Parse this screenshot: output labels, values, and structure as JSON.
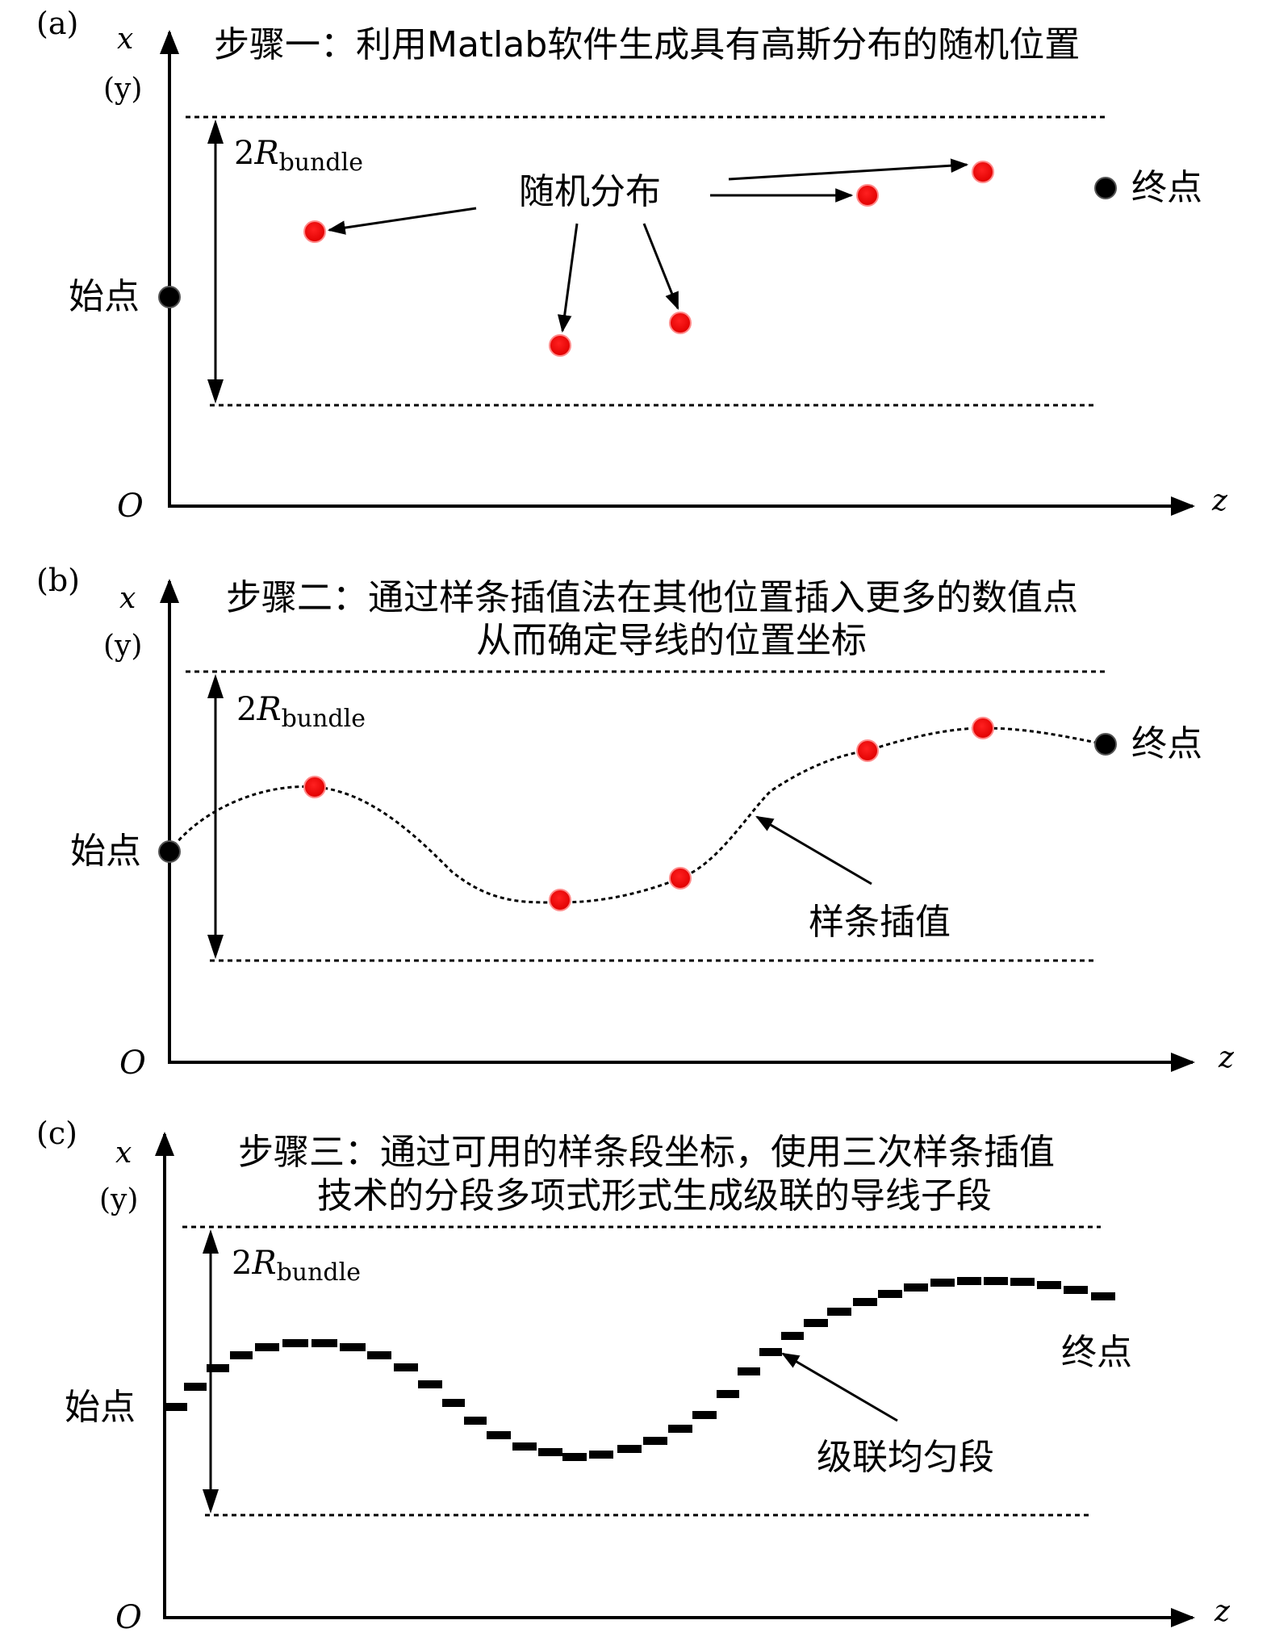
{
  "panels": [
    {
      "id": "a",
      "panel_label": "(a)",
      "title_lines": [
        "步骤一：利用Matlab软件生成具有高斯分布的随机位置"
      ],
      "axis_x_label": "x",
      "axis_y_label": "(y)",
      "origin_label": "O",
      "axis_z_label": "z",
      "bundle_coef": "2",
      "bundle_symbol": "R",
      "bundle_subscript": "bundle",
      "start_label": "始点",
      "end_label": "终点",
      "annotation": "随机分布"
    },
    {
      "id": "b",
      "panel_label": "(b)",
      "title_lines": [
        "步骤二：通过样条插值法在其他位置插入更多的数值点",
        "从而确定导线的位置坐标"
      ],
      "axis_x_label": "x",
      "axis_y_label": "(y)",
      "origin_label": "O",
      "axis_z_label": "z",
      "bundle_coef": "2",
      "bundle_symbol": "R",
      "bundle_subscript": "bundle",
      "start_label": "始点",
      "end_label": "终点",
      "annotation": "样条插值"
    },
    {
      "id": "c",
      "panel_label": "(c)",
      "title_lines": [
        "步骤三：通过可用的样条段坐标，使用三次样条插值",
        "技术的分段多项式形式生成级联的导线子段"
      ],
      "axis_x_label": "x",
      "axis_y_label": "(y)",
      "origin_label": "O",
      "axis_z_label": "z",
      "bundle_coef": "2",
      "bundle_symbol": "R",
      "bundle_subscript": "bundle",
      "start_label": "始点",
      "end_label": "终点",
      "annotation": "级联均匀段"
    }
  ],
  "colors": {
    "random_point": "#ee0000",
    "endpoint": "#000000",
    "line": "#000000"
  }
}
